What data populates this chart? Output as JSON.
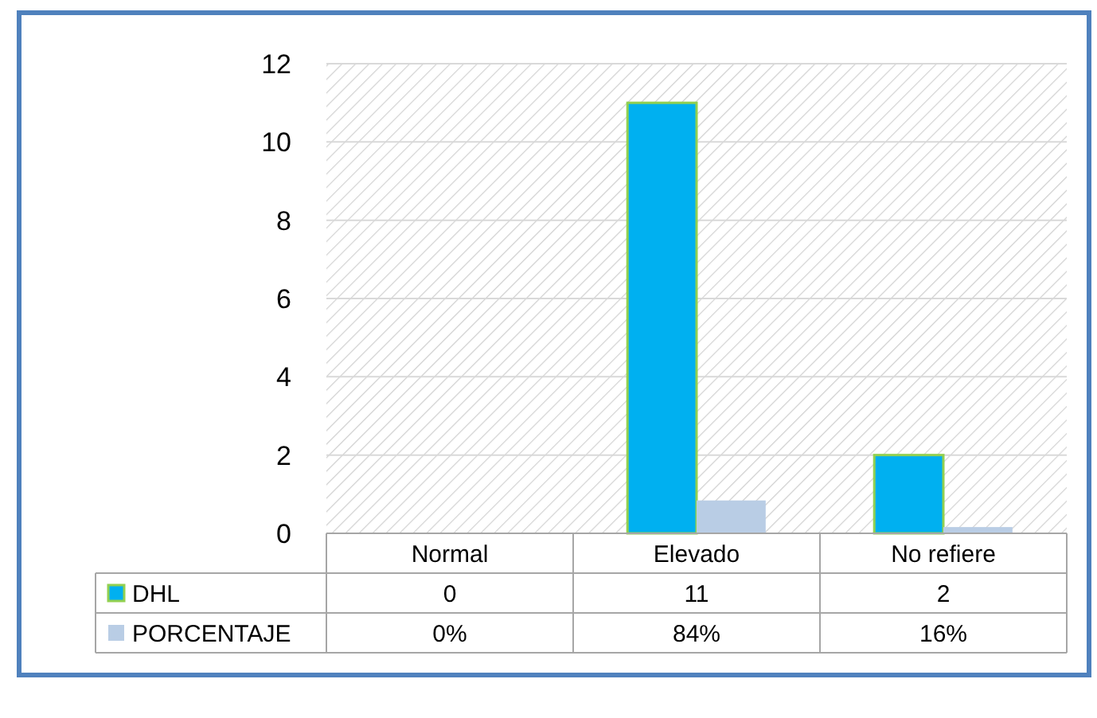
{
  "chart_data": {
    "type": "bar",
    "categories": [
      "Normal",
      "Elevado",
      "No refiere"
    ],
    "series": [
      {
        "name": "DHL",
        "color": "#00b0f0",
        "values": [
          0,
          11,
          2
        ],
        "value_labels": [
          "0",
          "11",
          "2"
        ]
      },
      {
        "name": "PORCENTAJE",
        "color": "#b9cde5",
        "values": [
          0,
          0.84,
          0.16
        ],
        "value_labels": [
          "0%",
          "84%",
          "16%"
        ]
      }
    ],
    "ylim": [
      0,
      12
    ],
    "yticks": [
      0,
      2,
      4,
      6,
      8,
      10,
      12
    ],
    "grid": "y",
    "legend": "bottom"
  }
}
